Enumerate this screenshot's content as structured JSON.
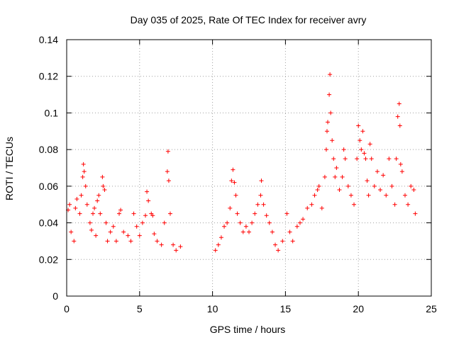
{
  "chart_data": {
    "type": "scatter",
    "title": "Day 035 of 2025, Rate Of TEC Index for receiver avry",
    "xlabel": "GPS time / hours",
    "ylabel": "ROTI / TECUs",
    "xlim": [
      0,
      25
    ],
    "ylim": [
      0,
      0.14
    ],
    "xticks": [
      0,
      5,
      10,
      15,
      20,
      25
    ],
    "xtick_labels": [
      "0",
      "5",
      "10",
      "15",
      "20",
      "25"
    ],
    "yticks": [
      0,
      0.02,
      0.04,
      0.06,
      0.08,
      0.1,
      0.12,
      0.14
    ],
    "ytick_labels": [
      "0",
      "0.02",
      "0.04",
      "0.06",
      "0.08",
      "0.1",
      "0.12",
      "0.14"
    ],
    "grid": true,
    "marker": "plus",
    "color": "#ff0000",
    "series": [
      {
        "name": "ROTI",
        "gap_hours": [
          8.1,
          10.0
        ],
        "points": [
          [
            0.1,
            0.047
          ],
          [
            0.2,
            0.05
          ],
          [
            0.3,
            0.035
          ],
          [
            0.5,
            0.03
          ],
          [
            0.6,
            0.048
          ],
          [
            0.7,
            0.053
          ],
          [
            0.9,
            0.045
          ],
          [
            1.0,
            0.055
          ],
          [
            1.1,
            0.065
          ],
          [
            1.15,
            0.072
          ],
          [
            1.2,
            0.068
          ],
          [
            1.3,
            0.06
          ],
          [
            1.4,
            0.05
          ],
          [
            1.6,
            0.04
          ],
          [
            1.7,
            0.036
          ],
          [
            1.8,
            0.045
          ],
          [
            1.9,
            0.048
          ],
          [
            2.0,
            0.033
          ],
          [
            2.1,
            0.052
          ],
          [
            2.2,
            0.055
          ],
          [
            2.3,
            0.045
          ],
          [
            2.45,
            0.065
          ],
          [
            2.5,
            0.06
          ],
          [
            2.6,
            0.058
          ],
          [
            2.7,
            0.04
          ],
          [
            2.8,
            0.03
          ],
          [
            3.0,
            0.035
          ],
          [
            3.2,
            0.038
          ],
          [
            3.4,
            0.03
          ],
          [
            3.6,
            0.045
          ],
          [
            3.7,
            0.047
          ],
          [
            3.9,
            0.035
          ],
          [
            4.2,
            0.033
          ],
          [
            4.4,
            0.03
          ],
          [
            4.6,
            0.045
          ],
          [
            4.8,
            0.038
          ],
          [
            5.0,
            0.033
          ],
          [
            5.2,
            0.04
          ],
          [
            5.4,
            0.044
          ],
          [
            5.5,
            0.057
          ],
          [
            5.6,
            0.052
          ],
          [
            5.8,
            0.045
          ],
          [
            5.9,
            0.044
          ],
          [
            6.0,
            0.034
          ],
          [
            6.2,
            0.03
          ],
          [
            6.5,
            0.028
          ],
          [
            6.7,
            0.04
          ],
          [
            6.9,
            0.068
          ],
          [
            6.95,
            0.079
          ],
          [
            7.0,
            0.063
          ],
          [
            7.1,
            0.045
          ],
          [
            7.3,
            0.028
          ],
          [
            7.5,
            0.025
          ],
          [
            7.8,
            0.027
          ],
          [
            10.2,
            0.025
          ],
          [
            10.4,
            0.028
          ],
          [
            10.6,
            0.032
          ],
          [
            10.8,
            0.038
          ],
          [
            11.0,
            0.04
          ],
          [
            11.2,
            0.048
          ],
          [
            11.3,
            0.063
          ],
          [
            11.4,
            0.069
          ],
          [
            11.5,
            0.062
          ],
          [
            11.6,
            0.055
          ],
          [
            11.7,
            0.045
          ],
          [
            11.9,
            0.04
          ],
          [
            12.1,
            0.035
          ],
          [
            12.3,
            0.038
          ],
          [
            12.5,
            0.035
          ],
          [
            12.7,
            0.04
          ],
          [
            12.9,
            0.045
          ],
          [
            13.1,
            0.05
          ],
          [
            13.3,
            0.055
          ],
          [
            13.35,
            0.063
          ],
          [
            13.5,
            0.05
          ],
          [
            13.7,
            0.044
          ],
          [
            13.9,
            0.04
          ],
          [
            14.1,
            0.035
          ],
          [
            14.3,
            0.028
          ],
          [
            14.5,
            0.025
          ],
          [
            14.8,
            0.03
          ],
          [
            15.1,
            0.045
          ],
          [
            15.3,
            0.035
          ],
          [
            15.5,
            0.03
          ],
          [
            15.8,
            0.038
          ],
          [
            16.0,
            0.04
          ],
          [
            16.2,
            0.042
          ],
          [
            16.5,
            0.048
          ],
          [
            16.8,
            0.05
          ],
          [
            17.0,
            0.055
          ],
          [
            17.2,
            0.058
          ],
          [
            17.3,
            0.06
          ],
          [
            17.5,
            0.048
          ],
          [
            17.7,
            0.065
          ],
          [
            17.8,
            0.08
          ],
          [
            17.85,
            0.09
          ],
          [
            17.9,
            0.095
          ],
          [
            18.0,
            0.11
          ],
          [
            18.05,
            0.121
          ],
          [
            18.1,
            0.1
          ],
          [
            18.2,
            0.085
          ],
          [
            18.3,
            0.075
          ],
          [
            18.4,
            0.065
          ],
          [
            18.5,
            0.07
          ],
          [
            18.7,
            0.058
          ],
          [
            18.9,
            0.065
          ],
          [
            19.0,
            0.08
          ],
          [
            19.1,
            0.075
          ],
          [
            19.3,
            0.06
          ],
          [
            19.5,
            0.055
          ],
          [
            19.7,
            0.05
          ],
          [
            19.9,
            0.075
          ],
          [
            20.0,
            0.093
          ],
          [
            20.1,
            0.085
          ],
          [
            20.2,
            0.08
          ],
          [
            20.3,
            0.09
          ],
          [
            20.4,
            0.078
          ],
          [
            20.5,
            0.075
          ],
          [
            20.6,
            0.063
          ],
          [
            20.7,
            0.055
          ],
          [
            20.8,
            0.083
          ],
          [
            20.9,
            0.075
          ],
          [
            21.1,
            0.06
          ],
          [
            21.3,
            0.068
          ],
          [
            21.5,
            0.058
          ],
          [
            21.7,
            0.066
          ],
          [
            21.9,
            0.055
          ],
          [
            22.1,
            0.075
          ],
          [
            22.3,
            0.06
          ],
          [
            22.5,
            0.05
          ],
          [
            22.6,
            0.075
          ],
          [
            22.7,
            0.098
          ],
          [
            22.8,
            0.105
          ],
          [
            22.85,
            0.093
          ],
          [
            22.9,
            0.072
          ],
          [
            23.0,
            0.068
          ],
          [
            23.2,
            0.055
          ],
          [
            23.4,
            0.05
          ],
          [
            23.6,
            0.06
          ],
          [
            23.8,
            0.058
          ],
          [
            23.9,
            0.045
          ]
        ]
      }
    ]
  }
}
